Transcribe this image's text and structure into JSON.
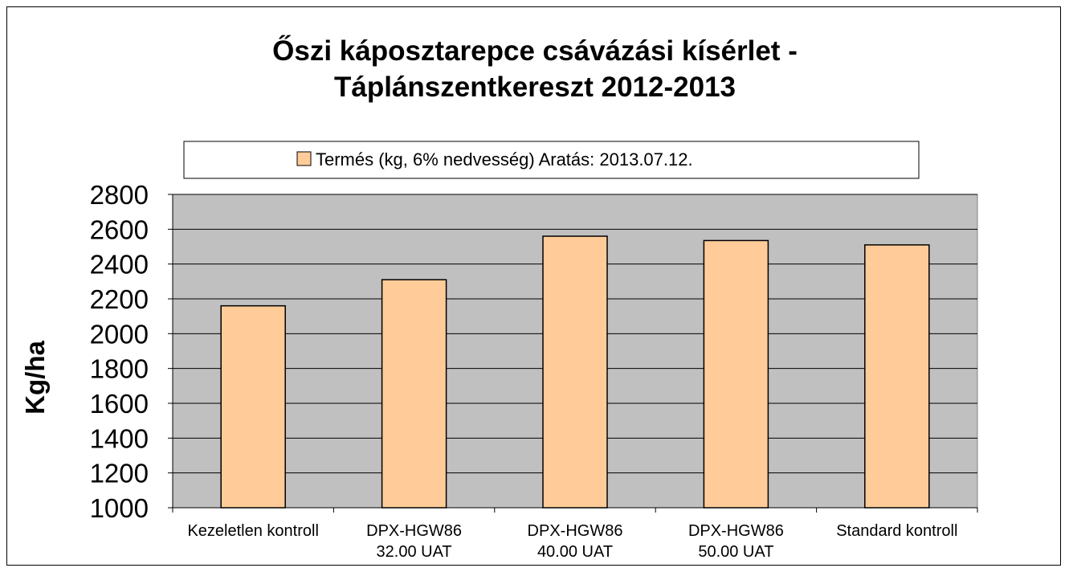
{
  "chart_data": {
    "type": "bar",
    "title_lines": [
      "Őszi káposztarepce csávázási kísérlet -",
      "Táplánszentkereszt 2012-2013"
    ],
    "ylabel": "Kg/ha",
    "xlabel": "",
    "ylim": [
      1000,
      2800
    ],
    "ytick_step": 200,
    "grid": true,
    "legend_position": "top",
    "series": [
      {
        "name": "Termés (kg, 6% nedvesség) Aratás: 2013.07.12.",
        "color": "#FFCC99",
        "values": [
          2160,
          2310,
          2560,
          2535,
          2510
        ]
      }
    ],
    "categories": [
      [
        "Kezeletlen kontroll"
      ],
      [
        "DPX-HGW86",
        "32.00 UAT"
      ],
      [
        "DPX-HGW86",
        "40.00 UAT"
      ],
      [
        "DPX-HGW86",
        "50.00 UAT"
      ],
      [
        "Standard kontroll"
      ]
    ],
    "plot_background": "#C0C0C0"
  }
}
